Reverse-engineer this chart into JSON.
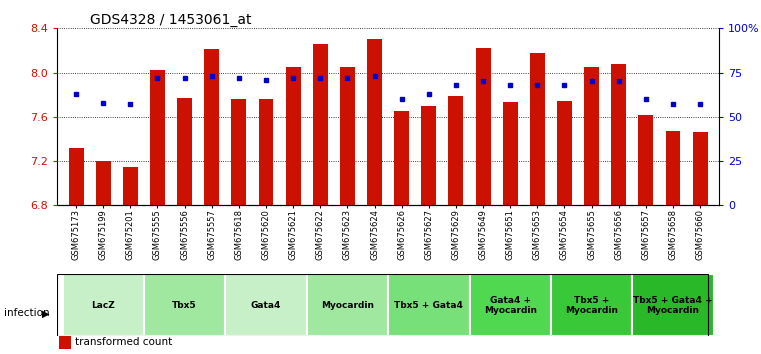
{
  "title": "GDS4328 / 1453061_at",
  "samples": [
    "GSM675173",
    "GSM675199",
    "GSM675201",
    "GSM675555",
    "GSM675556",
    "GSM675557",
    "GSM675618",
    "GSM675620",
    "GSM675621",
    "GSM675622",
    "GSM675623",
    "GSM675624",
    "GSM675626",
    "GSM675627",
    "GSM675629",
    "GSM675649",
    "GSM675651",
    "GSM675653",
    "GSM675654",
    "GSM675655",
    "GSM675656",
    "GSM675657",
    "GSM675658",
    "GSM675660"
  ],
  "bar_values": [
    7.32,
    7.2,
    7.15,
    8.02,
    7.77,
    8.21,
    7.76,
    7.76,
    8.05,
    8.26,
    8.05,
    8.3,
    7.65,
    7.7,
    7.79,
    8.22,
    7.73,
    8.18,
    7.74,
    8.05,
    8.08,
    7.62,
    7.47,
    7.46
  ],
  "percentile_values": [
    63,
    58,
    57,
    72,
    72,
    73,
    72,
    71,
    72,
    72,
    72,
    73,
    60,
    63,
    68,
    70,
    68,
    68,
    68,
    70,
    70,
    60,
    57,
    57
  ],
  "groups": [
    {
      "label": "LacZ",
      "start": 0,
      "end": 3,
      "color": "#c8f0c8"
    },
    {
      "label": "Tbx5",
      "start": 3,
      "end": 6,
      "color": "#a0e8a0"
    },
    {
      "label": "Gata4",
      "start": 6,
      "end": 9,
      "color": "#c8f0c8"
    },
    {
      "label": "Myocardin",
      "start": 9,
      "end": 12,
      "color": "#a0e8a0"
    },
    {
      "label": "Tbx5 + Gata4",
      "start": 12,
      "end": 15,
      "color": "#78e078"
    },
    {
      "label": "Gata4 +\nMyocardin",
      "start": 15,
      "end": 18,
      "color": "#50d850"
    },
    {
      "label": "Tbx5 +\nMyocardin",
      "start": 18,
      "end": 21,
      "color": "#38c838"
    },
    {
      "label": "Tbx5 + Gata4 +\nMyocardin",
      "start": 21,
      "end": 24,
      "color": "#28b828"
    }
  ],
  "ylim_left": [
    6.8,
    8.4
  ],
  "yticks_left": [
    6.8,
    7.2,
    7.6,
    8.0,
    8.4
  ],
  "yticks_right_vals": [
    0,
    25,
    50,
    75,
    100
  ],
  "yticks_right_labels": [
    "0",
    "25",
    "50",
    "75",
    "100%"
  ],
  "bar_color": "#cc1100",
  "dot_color": "#0000cc",
  "bar_bottom": 6.8
}
